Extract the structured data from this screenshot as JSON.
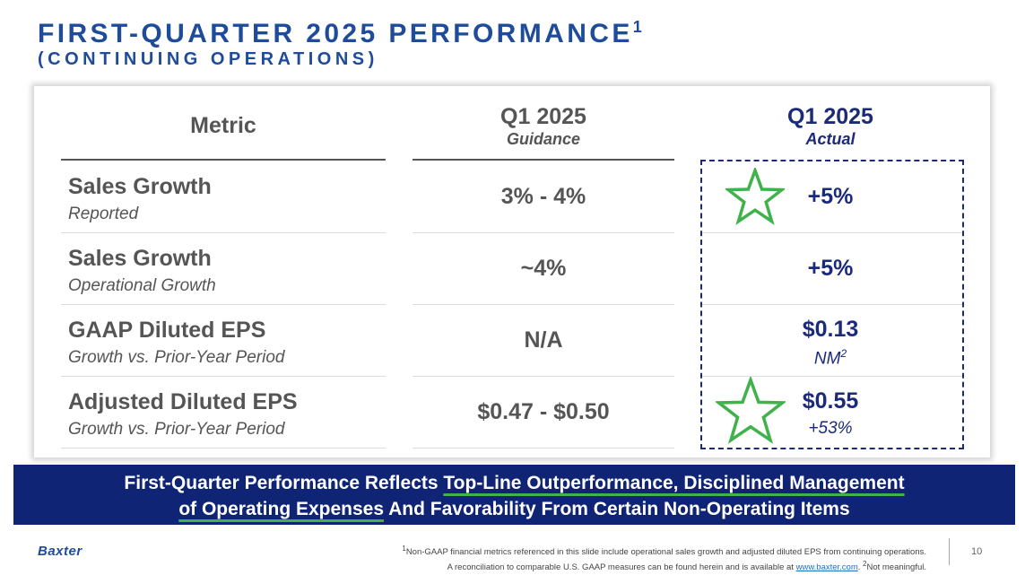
{
  "header": {
    "title": "FIRST-QUARTER 2025 PERFORMANCE",
    "title_sup": "1",
    "subtitle": "(CONTINUING OPERATIONS)"
  },
  "table": {
    "col_metric": "Metric",
    "col_guidance": "Q1 2025",
    "col_guidance_sub": "Guidance",
    "col_actual": "Q1 2025",
    "col_actual_sub": "Actual",
    "rows": [
      {
        "metric": "Sales Growth",
        "metric_sub": "Reported",
        "guidance": "3% - 4%",
        "actual": "+5%",
        "actual_sub": ""
      },
      {
        "metric": "Sales Growth",
        "metric_sub": "Operational Growth",
        "guidance": "~4%",
        "actual": "+5%",
        "actual_sub": ""
      },
      {
        "metric": "GAAP Diluted EPS",
        "metric_sub": "Growth vs. Prior-Year Period",
        "guidance": "N/A",
        "actual": "$0.13",
        "actual_sub": "NM",
        "actual_sub_sup": "2"
      },
      {
        "metric": "Adjusted Diluted EPS",
        "metric_sub": "Growth vs. Prior-Year Period",
        "guidance": "$0.47 - $0.50",
        "actual": "$0.55",
        "actual_sub": "+53%"
      }
    ]
  },
  "banner": {
    "part1": "First-Quarter Performance Reflects ",
    "highlight1": "Top-Line Outperformance, Disciplined Management",
    "highlight2": "of Operating Expenses",
    "part2": " And Favorability From Certain Non-Operating Items"
  },
  "footer": {
    "logo": "Baxter",
    "note_sup1": "1",
    "note_line1": "Non-GAAP financial metrics referenced in this slide include operational sales growth and adjusted diluted EPS from continuing operations.",
    "note_line2_a": "A reconciliation to comparable U.S. GAAP measures can be found herein and is available at ",
    "note_link": "www.baxter.com",
    "note_line2_b": ". ",
    "note_sup2": "2",
    "note_line2_c": "Not meaningful.",
    "page_number": "10"
  },
  "colors": {
    "title_blue": "#1f4c9a",
    "navy": "#1b2a7a",
    "banner_bg": "#0f2474",
    "star_green": "#3fb24b"
  },
  "icons": [
    "star-icon"
  ]
}
